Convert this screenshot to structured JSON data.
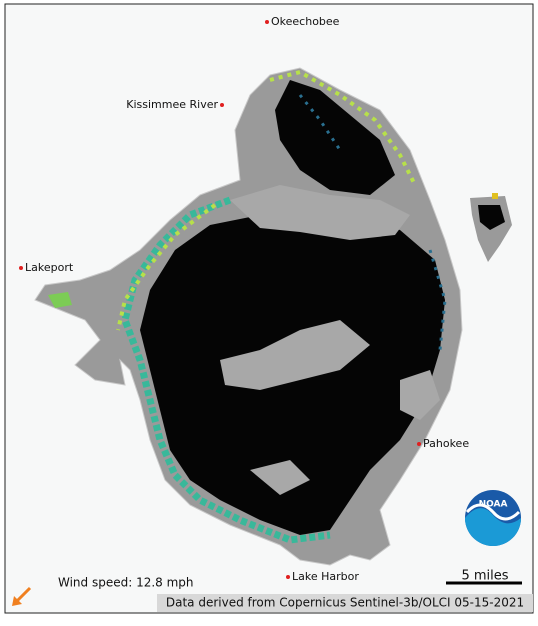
{
  "places": [
    {
      "label": "Okeechobee"
    },
    {
      "label": "Kissimmee River"
    },
    {
      "label": "Lakeport"
    },
    {
      "label": "Pahokee"
    },
    {
      "label": "Lake Harbor"
    }
  ],
  "wind": "Wind speed: 12.8 mph",
  "scale": "5 miles",
  "attribution": "Data derived from Copernicus Sentinel-3b/OLCI 05-15-2021",
  "logo": "NOAA"
}
